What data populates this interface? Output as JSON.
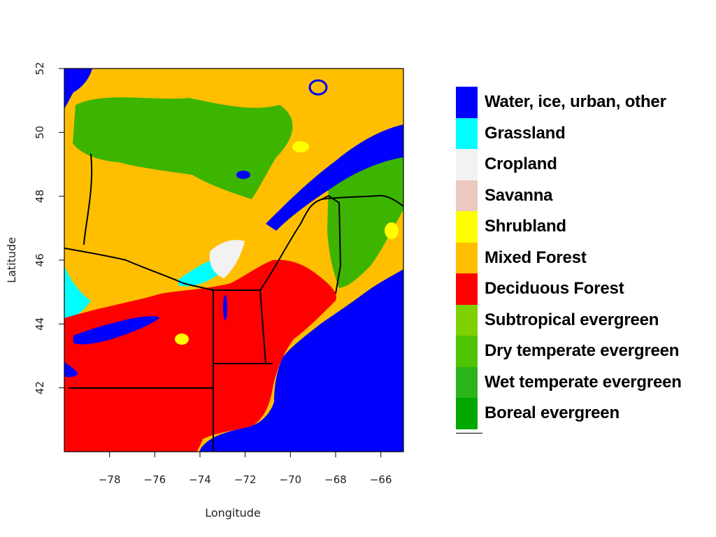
{
  "map": {
    "x_axis_title": "Longitude",
    "y_axis_title": "Latitude",
    "x_ticks": [
      "-78",
      "-76",
      "-74",
      "-72",
      "-70",
      "-68",
      "-66"
    ],
    "y_ticks": [
      "42",
      "44",
      "46",
      "48",
      "50",
      "52"
    ],
    "x_range": [
      -80,
      -65
    ],
    "y_range": [
      40,
      52
    ]
  },
  "legend": {
    "items": [
      {
        "label": "Water, ice, urban, other",
        "color": "#0000ff"
      },
      {
        "label": "Grassland",
        "color": "#00ffff"
      },
      {
        "label": "Cropland",
        "color": "#f2f2f2"
      },
      {
        "label": "Savanna",
        "color": "#ecc9c0"
      },
      {
        "label": "Shrubland",
        "color": "#ffff00"
      },
      {
        "label": "Mixed Forest",
        "color": "#ffbf00"
      },
      {
        "label": "Deciduous Forest",
        "color": "#ff0000"
      },
      {
        "label": "Subtropical evergreen",
        "color": "#7fd000"
      },
      {
        "label": "Dry temperate evergreen",
        "color": "#4ec400"
      },
      {
        "label": "Wet temperate evergreen",
        "color": "#2ab41a"
      },
      {
        "label": "Boreal evergreen",
        "color": "#00a800"
      }
    ]
  }
}
